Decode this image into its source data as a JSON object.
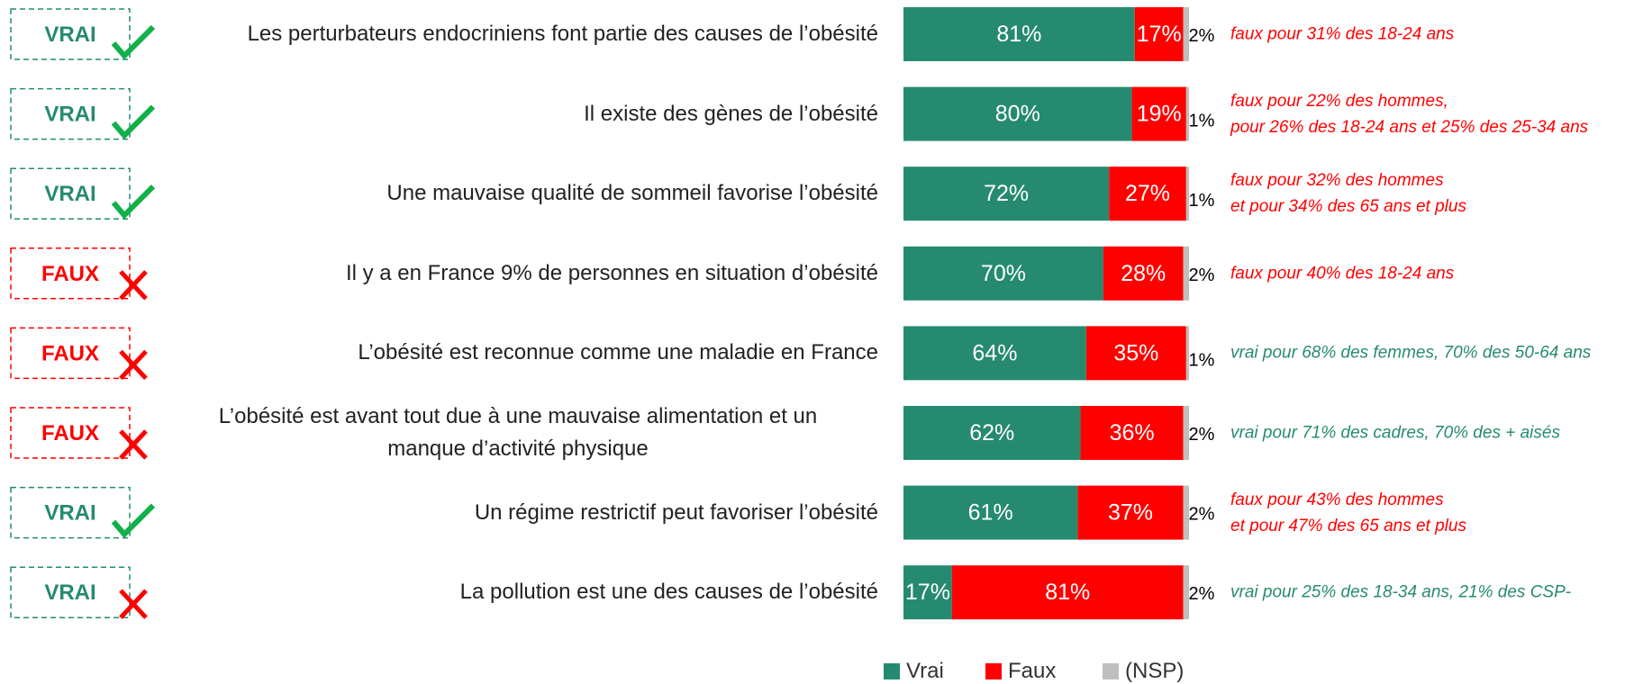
{
  "chart_data": {
    "type": "bar",
    "orientation": "horizontal",
    "stacked": true,
    "categories": [
      "Les perturbateurs endocriniens font partie des causes de l’obésité",
      "Il existe des gènes de l’obésité",
      "Une mauvaise qualité de sommeil favorise l’obésité",
      "Il y a en France 9% de personnes en situation d’obésité",
      "L’obésité est reconnue comme une maladie en France",
      "L’obésité est avant tout due à une mauvaise alimentation et un\nmanque d’activité physique",
      "Un régime restrictif peut favoriser l’obésité",
      "La pollution est une des causes de l’obésité"
    ],
    "series": [
      {
        "name": "Vrai",
        "color": "#268a70",
        "values": [
          81,
          80,
          72,
          70,
          64,
          62,
          61,
          17
        ],
        "value_labels": [
          "81%",
          "80%",
          "72%",
          "70%",
          "64%",
          "62%",
          "61%",
          "17%"
        ]
      },
      {
        "name": "Faux",
        "color": "#ff0000",
        "values": [
          17,
          19,
          27,
          28,
          35,
          36,
          37,
          81
        ],
        "value_labels": [
          "17%",
          "19%",
          "27%",
          "28%",
          "35%",
          "36%",
          "37%",
          "81%"
        ]
      },
      {
        "name": "(NSP)",
        "color": "#bfbfbf",
        "values": [
          2,
          1,
          1,
          2,
          1,
          2,
          2,
          2
        ],
        "value_labels": [
          "2%",
          "1%",
          "1%",
          "2%",
          "1%",
          "2%",
          "2%",
          "2%"
        ]
      }
    ],
    "xlim": [
      0,
      100
    ],
    "badges": [
      "VRAI",
      "VRAI",
      "VRAI",
      "FAUX",
      "FAUX",
      "FAUX",
      "VRAI",
      "VRAI"
    ],
    "badge_colors": [
      "#268a70",
      "#268a70",
      "#268a70",
      "#ff0000",
      "#ff0000",
      "#ff0000",
      "#268a70",
      "#268a70"
    ],
    "badge_icons": [
      "check",
      "check",
      "check",
      "cross",
      "cross",
      "cross",
      "check",
      "cross"
    ],
    "annotations": [
      {
        "text": "faux pour 31% des 18-24 ans",
        "color": "#ff0000"
      },
      {
        "text": "faux pour 22% des hommes,\npour 26% des 18-24 ans et 25% des 25-34 ans",
        "color": "#ff0000"
      },
      {
        "text": "faux pour 32% des hommes\net pour 34% des 65 ans et plus",
        "color": "#ff0000"
      },
      {
        "text": "faux pour 40% des 18-24 ans",
        "color": "#ff0000"
      },
      {
        "text": "vrai pour 68% des femmes, 70% des 50-64 ans",
        "color": "#268a70"
      },
      {
        "text": "vrai pour 71% des cadres, 70% des + aisés",
        "color": "#268a70"
      },
      {
        "text": "faux pour 43% des hommes\net pour 47% des 65 ans et plus",
        "color": "#ff0000"
      },
      {
        "text": "vrai pour 25% des 18-34 ans, 21% des CSP-",
        "color": "#268a70"
      }
    ],
    "legend": "bottom"
  }
}
